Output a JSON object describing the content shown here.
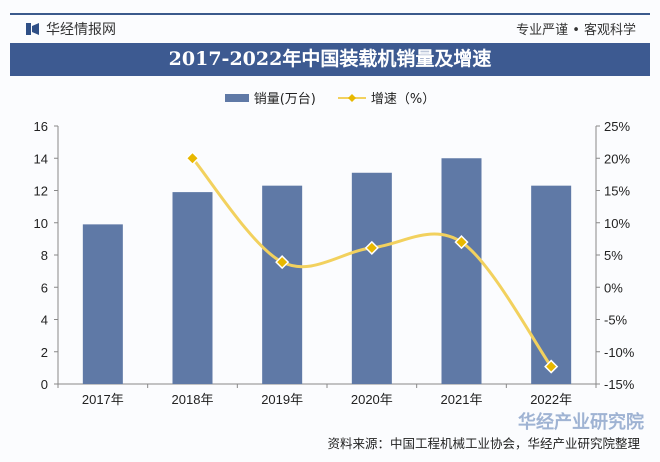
{
  "header": {
    "brand": "华经情报网",
    "slogan": "专业严谨 • 客观科学",
    "title": "2017-2022年中国装载机销量及增速"
  },
  "footer": {
    "source": "资料来源：中国工程机械工业协会，华经产业研究院整理",
    "watermark": "华经产业研究院"
  },
  "colors": {
    "bar": "#5f79a6",
    "line": "#f2d15e",
    "marker": "#e8b800",
    "banner": "#3d5a91"
  },
  "chart_data": {
    "type": "bar+line",
    "title": "2017-2022年中国装载机销量及增速",
    "categories": [
      "2017年",
      "2018年",
      "2019年",
      "2020年",
      "2021年",
      "2022年"
    ],
    "series": [
      {
        "name": "销量(万台)",
        "type": "bar",
        "axis": "left",
        "values": [
          9.9,
          11.9,
          12.3,
          13.1,
          14.0,
          12.3
        ]
      },
      {
        "name": "增速（%）",
        "type": "line",
        "axis": "right",
        "values": [
          null,
          20.0,
          3.9,
          6.1,
          7.0,
          -12.3
        ]
      }
    ],
    "left_axis": {
      "ylim": [
        0,
        16
      ],
      "ticks": [
        "0",
        "2",
        "4",
        "6",
        "8",
        "10",
        "12",
        "14",
        "16"
      ]
    },
    "right_axis": {
      "ylim": [
        -15,
        25
      ],
      "ticks": [
        "-15%",
        "-10%",
        "-5%",
        "0%",
        "5%",
        "10%",
        "15%",
        "20%",
        "25%"
      ]
    },
    "grid": false,
    "legend": "top"
  }
}
